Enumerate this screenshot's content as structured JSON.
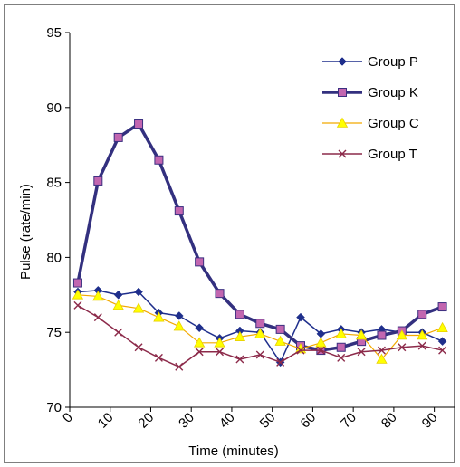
{
  "chart_data": {
    "type": "line",
    "title": "",
    "xlabel": "Time (minutes)",
    "ylabel": "Pulse (rate/min)",
    "xlim": [
      0,
      95
    ],
    "ylim": [
      70,
      95
    ],
    "x_ticks": [
      "0",
      "10",
      "20",
      "30",
      "40",
      "50",
      "60",
      "70",
      "80",
      "90"
    ],
    "y_ticks": [
      "70",
      "75",
      "80",
      "85",
      "90",
      "95"
    ],
    "grid": false,
    "legend_position": "top-right",
    "x": [
      2,
      7,
      12,
      17,
      22,
      27,
      32,
      37,
      42,
      47,
      52,
      57,
      62,
      67,
      72,
      77,
      82,
      87,
      92
    ],
    "series": [
      {
        "name": "Group P",
        "color": "#1f2f8c",
        "marker": "diamond",
        "values": [
          77.7,
          77.8,
          77.5,
          77.7,
          76.3,
          76.1,
          75.3,
          74.6,
          75.1,
          75.0,
          73.0,
          76.0,
          74.9,
          75.2,
          75.0,
          75.2,
          75.0,
          75.0,
          74.4
        ]
      },
      {
        "name": "Group K",
        "color": "#33307f",
        "marker": "square",
        "values": [
          78.3,
          85.1,
          88.0,
          88.9,
          86.5,
          83.1,
          79.7,
          77.6,
          76.2,
          75.6,
          75.2,
          74.1,
          73.8,
          74.0,
          74.4,
          74.8,
          75.1,
          76.2,
          76.7
        ]
      },
      {
        "name": "Group C",
        "color": "#f2a900",
        "marker": "triangle",
        "values": [
          77.5,
          77.4,
          76.8,
          76.6,
          76.0,
          75.4,
          74.3,
          74.3,
          74.7,
          74.9,
          74.4,
          73.9,
          74.3,
          74.9,
          74.8,
          73.2,
          74.8,
          74.8,
          75.3
        ]
      },
      {
        "name": "Group T",
        "color": "#8c2a4a",
        "marker": "x",
        "values": [
          76.8,
          76.0,
          75.0,
          74.0,
          73.3,
          72.7,
          73.7,
          73.7,
          73.2,
          73.5,
          73.0,
          73.8,
          73.8,
          73.3,
          73.7,
          73.8,
          74.0,
          74.1,
          73.8
        ]
      }
    ]
  }
}
